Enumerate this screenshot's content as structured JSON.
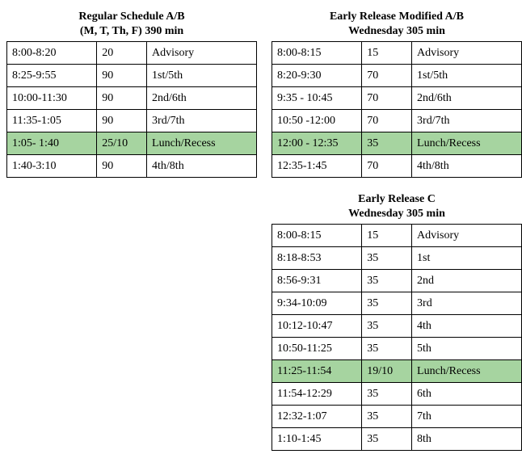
{
  "highlight_color": "#a6d4a0",
  "schedules": {
    "regular": {
      "title_line1": "Regular Schedule A/B",
      "title_line2": "(M, T, Th, F) 390 min",
      "col_widths": [
        "36%",
        "20%",
        "44%"
      ],
      "rows": [
        {
          "time": "8:00-8:20",
          "dur": "20",
          "label": "Advisory",
          "lunch": false
        },
        {
          "time": "8:25-9:55",
          "dur": "90",
          "label": "1st/5th",
          "lunch": false
        },
        {
          "time": "10:00-11:30",
          "dur": "90",
          "label": "2nd/6th",
          "lunch": false
        },
        {
          "time": "11:35-1:05",
          "dur": "90",
          "label": "3rd/7th",
          "lunch": false
        },
        {
          "time": "1:05- 1:40",
          "dur": "25/10",
          "label": "Lunch/Recess",
          "lunch": true
        },
        {
          "time": "1:40-3:10",
          "dur": "90",
          "label": "4th/8th",
          "lunch": false
        }
      ]
    },
    "early_ab": {
      "title_line1": "Early Release Modified A/B",
      "title_line2": "Wednesday 305 min",
      "col_widths": [
        "36%",
        "20%",
        "44%"
      ],
      "rows": [
        {
          "time": "8:00-8:15",
          "dur": "15",
          "label": "Advisory",
          "lunch": false
        },
        {
          "time": "8:20-9:30",
          "dur": "70",
          "label": "1st/5th",
          "lunch": false
        },
        {
          "time": "9:35 - 10:45",
          "dur": "70",
          "label": "2nd/6th",
          "lunch": false
        },
        {
          "time": "10:50 -12:00",
          "dur": "70",
          "label": "3rd/7th",
          "lunch": false
        },
        {
          "time": "12:00 - 12:35",
          "dur": "35",
          "label": "Lunch/Recess",
          "lunch": true
        },
        {
          "time": "12:35-1:45",
          "dur": "70",
          "label": "4th/8th",
          "lunch": false
        }
      ]
    },
    "early_c": {
      "title_line1": "Early Release C",
      "title_line2": "Wednesday 305 min",
      "col_widths": [
        "36%",
        "20%",
        "44%"
      ],
      "rows": [
        {
          "time": "8:00-8:15",
          "dur": "15",
          "label": "Advisory",
          "lunch": false
        },
        {
          "time": "8:18-8:53",
          "dur": "35",
          "label": "1st",
          "lunch": false
        },
        {
          "time": "8:56-9:31",
          "dur": "35",
          "label": "2nd",
          "lunch": false
        },
        {
          "time": "9:34-10:09",
          "dur": "35",
          "label": "3rd",
          "lunch": false
        },
        {
          "time": "10:12-10:47",
          "dur": "35",
          "label": "4th",
          "lunch": false
        },
        {
          "time": "10:50-11:25",
          "dur": "35",
          "label": "5th",
          "lunch": false
        },
        {
          "time": "11:25-11:54",
          "dur": "19/10",
          "label": "Lunch/Recess",
          "lunch": true
        },
        {
          "time": "11:54-12:29",
          "dur": "35",
          "label": "6th",
          "lunch": false
        },
        {
          "time": "12:32-1:07",
          "dur": "35",
          "label": "7th",
          "lunch": false
        },
        {
          "time": "1:10-1:45",
          "dur": "35",
          "label": "8th",
          "lunch": false
        }
      ]
    }
  }
}
